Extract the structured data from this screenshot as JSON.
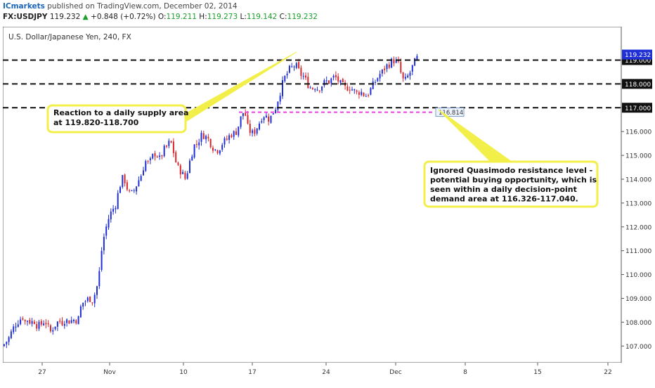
{
  "header": {
    "author": "ICmarkets",
    "published": "published on TradingView.com, December 02, 2014",
    "symbol": "FX:USDJPY",
    "last": "119.232",
    "change_arrow": "▲",
    "change": "+0.848 (+0.72%)",
    "o_label": "O:",
    "o_value": "119.211",
    "h_label": "H:",
    "h_value": "119.273",
    "l_label": "L:",
    "l_value": "119.142",
    "c_label": "C:",
    "c_value": "119.232"
  },
  "chart_title": "U.S. Dollar/Japanese Yen, 240, FX",
  "colors": {
    "up": "#1f2fd6",
    "down": "#d8262b",
    "level_line": "#111111",
    "magenta": "#ee3ee6",
    "callout_border": "#f3ef4a",
    "price_tag": "#1f2fd6"
  },
  "annotations": {
    "supply": "Reaction to a daily supply area\nat 119.820-118.700",
    "quasimodo": "Ignored Quasimodo resistance level -\npotential buying opportunity, which is\nseen within a daily decision-point\ndemand area at 116.326-117.040."
  },
  "chart_data": {
    "type": "candlestick",
    "symbol": "USDJPY",
    "timeframe": "240",
    "ylim": [
      106.3,
      120.4
    ],
    "y_ticks": [
      "107.000",
      "108.000",
      "109.000",
      "110.000",
      "111.000",
      "112.000",
      "113.000",
      "114.000",
      "115.000",
      "116.000",
      "117.000",
      "118.000",
      "119.000"
    ],
    "x_ticks": [
      "27",
      "Nov",
      "10",
      "17",
      "24",
      "Dec",
      "8",
      "15",
      "22"
    ],
    "last_price": "119.232",
    "horizontal_levels": [
      {
        "price": 119.0,
        "label": "119.000",
        "style": "dashed"
      },
      {
        "price": 118.0,
        "label": "118.000",
        "style": "dashed"
      },
      {
        "price": 117.0,
        "label": "117.000",
        "style": "dashed"
      }
    ],
    "magenta_level": {
      "price": 116.814,
      "label": "116.814"
    },
    "close_path": [
      [
        0,
        107.0
      ],
      [
        8,
        107.3
      ],
      [
        14,
        107.7
      ],
      [
        20,
        108.0
      ],
      [
        24,
        108.1
      ],
      [
        28,
        108.25
      ],
      [
        32,
        108.0
      ],
      [
        36,
        108.15
      ],
      [
        40,
        107.95
      ],
      [
        44,
        108.1
      ],
      [
        48,
        107.9
      ],
      [
        52,
        107.85
      ],
      [
        56,
        107.95
      ],
      [
        60,
        108.1
      ],
      [
        64,
        107.8
      ],
      [
        68,
        107.6
      ],
      [
        72,
        107.8
      ],
      [
        76,
        107.95
      ],
      [
        80,
        108.05
      ],
      [
        84,
        108.0
      ],
      [
        88,
        108.1
      ],
      [
        92,
        108.05
      ],
      [
        96,
        108.05
      ],
      [
        100,
        108.1
      ],
      [
        104,
        108.1
      ],
      [
        108,
        108.15
      ],
      [
        112,
        108.8
      ],
      [
        116,
        108.85
      ],
      [
        120,
        108.95
      ],
      [
        124,
        109.0
      ],
      [
        128,
        108.9
      ],
      [
        132,
        109.3
      ],
      [
        136,
        109.7
      ],
      [
        140,
        110.9
      ],
      [
        144,
        111.6
      ],
      [
        148,
        112.1
      ],
      [
        152,
        112.5
      ],
      [
        156,
        112.7
      ],
      [
        160,
        112.9
      ],
      [
        164,
        113.4
      ],
      [
        168,
        113.9
      ],
      [
        172,
        114.1
      ],
      [
        176,
        113.7
      ],
      [
        180,
        113.4
      ],
      [
        184,
        113.4
      ],
      [
        188,
        113.6
      ],
      [
        192,
        113.9
      ],
      [
        196,
        114.1
      ],
      [
        200,
        114.5
      ],
      [
        204,
        114.8
      ],
      [
        208,
        114.6
      ],
      [
        212,
        114.9
      ],
      [
        216,
        115.1
      ],
      [
        220,
        115.0
      ],
      [
        224,
        114.8
      ],
      [
        228,
        115.2
      ],
      [
        232,
        115.3
      ],
      [
        236,
        115.5
      ],
      [
        240,
        115.5
      ],
      [
        244,
        115.0
      ],
      [
        248,
        114.5
      ],
      [
        252,
        114.4
      ],
      [
        256,
        114.2
      ],
      [
        260,
        114.0
      ],
      [
        264,
        114.5
      ],
      [
        268,
        115.0
      ],
      [
        272,
        115.4
      ],
      [
        276,
        115.5
      ],
      [
        280,
        115.7
      ],
      [
        284,
        115.9
      ],
      [
        288,
        115.8
      ],
      [
        292,
        115.7
      ],
      [
        296,
        115.5
      ],
      [
        300,
        115.3
      ],
      [
        304,
        115.2
      ],
      [
        308,
        115.3
      ],
      [
        312,
        115.5
      ],
      [
        316,
        115.6
      ],
      [
        320,
        115.7
      ],
      [
        324,
        115.9
      ],
      [
        328,
        115.9
      ],
      [
        332,
        116.0
      ],
      [
        336,
        116.3
      ],
      [
        340,
        116.7
      ],
      [
        344,
        116.9
      ],
      [
        348,
        116.2
      ],
      [
        352,
        116.0
      ],
      [
        356,
        115.9
      ],
      [
        360,
        116.1
      ],
      [
        364,
        116.3
      ],
      [
        368,
        116.6
      ],
      [
        372,
        116.7
      ],
      [
        376,
        116.6
      ],
      [
        380,
        116.5
      ],
      [
        384,
        116.8
      ],
      [
        388,
        117.0
      ],
      [
        392,
        117.4
      ],
      [
        396,
        117.8
      ],
      [
        400,
        118.2
      ],
      [
        404,
        118.4
      ],
      [
        408,
        118.6
      ],
      [
        412,
        118.7
      ],
      [
        416,
        118.8
      ],
      [
        420,
        118.6
      ],
      [
        424,
        118.4
      ],
      [
        428,
        118.3
      ],
      [
        432,
        118.1
      ],
      [
        436,
        117.9
      ],
      [
        440,
        117.8
      ],
      [
        444,
        117.9
      ],
      [
        448,
        117.8
      ],
      [
        452,
        117.9
      ],
      [
        456,
        118.0
      ],
      [
        460,
        118.1
      ],
      [
        464,
        118.1
      ],
      [
        468,
        118.2
      ],
      [
        472,
        118.3
      ],
      [
        476,
        118.2
      ],
      [
        480,
        118.0
      ],
      [
        484,
        117.9
      ],
      [
        488,
        117.8
      ],
      [
        492,
        117.9
      ],
      [
        496,
        117.8
      ],
      [
        500,
        117.7
      ],
      [
        504,
        117.6
      ],
      [
        508,
        117.7
      ],
      [
        512,
        117.6
      ],
      [
        516,
        117.5
      ],
      [
        520,
        117.6
      ],
      [
        524,
        117.8
      ],
      [
        528,
        118.0
      ],
      [
        532,
        118.2
      ],
      [
        536,
        118.4
      ],
      [
        540,
        118.5
      ],
      [
        544,
        118.7
      ],
      [
        548,
        118.8
      ],
      [
        552,
        118.9
      ],
      [
        556,
        119.0
      ],
      [
        560,
        118.9
      ],
      [
        564,
        118.8
      ],
      [
        568,
        118.2
      ],
      [
        572,
        118.1
      ],
      [
        576,
        118.3
      ],
      [
        580,
        118.5
      ],
      [
        584,
        118.8
      ],
      [
        588,
        119.0
      ],
      [
        592,
        119.2
      ],
      [
        594,
        119.23
      ]
    ]
  }
}
